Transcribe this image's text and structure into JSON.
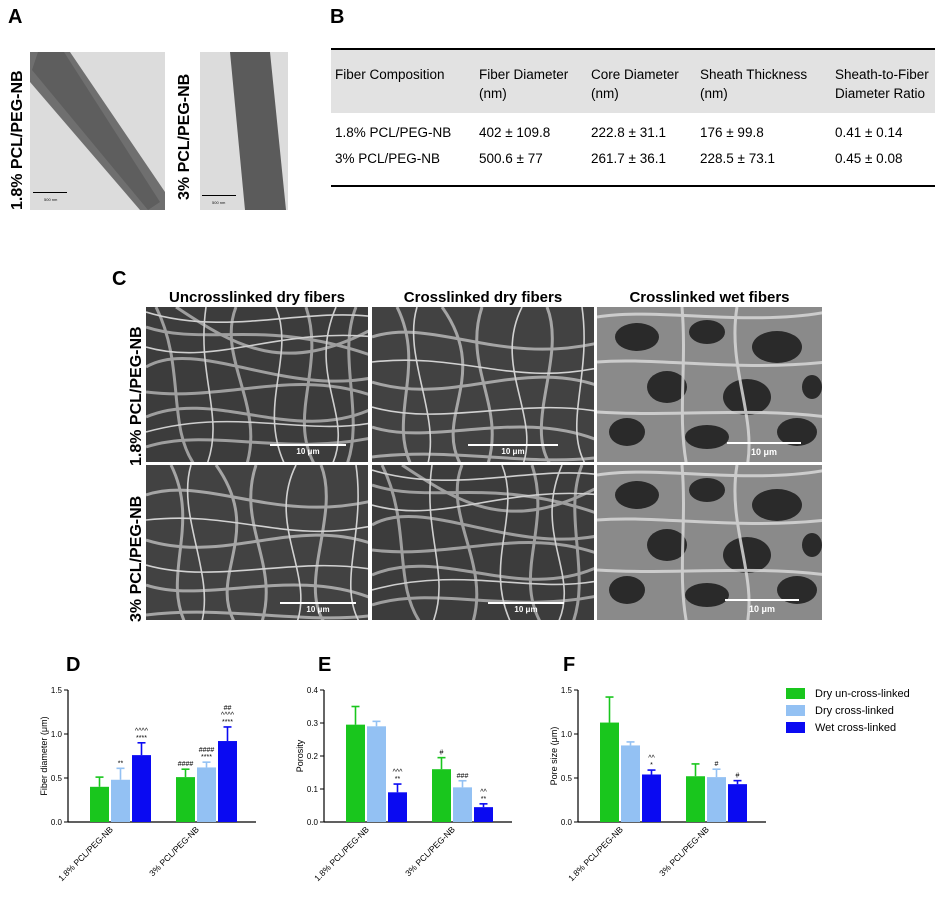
{
  "panels": {
    "a": "A",
    "b": "B",
    "c": "C",
    "d": "D",
    "e": "E",
    "f": "F"
  },
  "tem": {
    "label1": "1.8% PCL/PEG-NB",
    "label2": "3% PCL/PEG-NB",
    "scale1": "500 nm",
    "scale2": "500 nm"
  },
  "table": {
    "headers": [
      "Fiber Composition",
      "Fiber Diameter (nm)",
      "Core Diameter (nm)",
      "Sheath Thickness (nm)",
      "Sheath-to-Fiber Diameter Ratio"
    ],
    "rows": [
      [
        "1.8% PCL/PEG-NB",
        "402 ± 109.8",
        "222.8 ± 31.1",
        "176 ± 99.8",
        "0.41 ± 0.14"
      ],
      [
        "3% PCL/PEG-NB",
        "500.6 ± 77",
        "261.7 ± 36.1",
        "228.5 ± 73.1",
        "0.45 ± 0.08"
      ]
    ]
  },
  "sem": {
    "col1": "Uncrosslinked dry fibers",
    "col2": "Crosslinked dry fibers",
    "col3": "Crosslinked wet fibers",
    "row1": "1.8% PCL/PEG-NB",
    "row2": "3% PCL/PEG-NB",
    "scale_small": "10 μm",
    "scale_wet": "10 μm"
  },
  "legend": {
    "items": [
      {
        "label": "Dry un-cross-linked",
        "color": "#19c61d"
      },
      {
        "label": "Dry cross-linked",
        "color": "#93c1f3"
      },
      {
        "label": "Wet cross-linked",
        "color": "#0a0af2"
      }
    ]
  },
  "chart_data": [
    {
      "type": "bar",
      "panel": "D",
      "ylabel": "Fiber diameter (μm)",
      "ylim": [
        0,
        1.5
      ],
      "yticks": [
        "0.0",
        "0.5",
        "1.0",
        "1.5"
      ],
      "categories": [
        "1.8% PCL/PEG-NB",
        "3% PCL/PEG-NB"
      ],
      "series": [
        {
          "name": "Dry un-cross-linked",
          "values": [
            0.4,
            0.51
          ],
          "err": [
            0.11,
            0.09
          ],
          "marks": [
            [],
            [
              "####"
            ]
          ]
        },
        {
          "name": "Dry cross-linked",
          "values": [
            0.48,
            0.62
          ],
          "err": [
            0.13,
            0.06
          ],
          "marks": [
            [
              "**"
            ],
            [
              "####",
              "****"
            ]
          ]
        },
        {
          "name": "Wet cross-linked",
          "values": [
            0.76,
            0.92
          ],
          "err": [
            0.14,
            0.16
          ],
          "marks": [
            [
              "^^^^",
              "****"
            ],
            [
              "##",
              "^^^^",
              "****"
            ]
          ]
        }
      ]
    },
    {
      "type": "bar",
      "panel": "E",
      "ylabel": "Porosity",
      "ylim": [
        0,
        0.4
      ],
      "yticks": [
        "0.0",
        "0.1",
        "0.2",
        "0.3",
        "0.4"
      ],
      "categories": [
        "1.8% PCL/PEG-NB",
        "3% PCL/PEG-NB"
      ],
      "series": [
        {
          "name": "Dry un-cross-linked",
          "values": [
            0.295,
            0.16
          ],
          "err": [
            0.055,
            0.035
          ],
          "marks": [
            [],
            [
              "#"
            ]
          ]
        },
        {
          "name": "Dry cross-linked",
          "values": [
            0.29,
            0.105
          ],
          "err": [
            0.015,
            0.02
          ],
          "marks": [
            [],
            [
              "###"
            ]
          ]
        },
        {
          "name": "Wet cross-linked",
          "values": [
            0.09,
            0.045
          ],
          "err": [
            0.025,
            0.01
          ],
          "marks": [
            [
              "^^^",
              "**"
            ],
            [
              "^^",
              "**"
            ]
          ]
        }
      ]
    },
    {
      "type": "bar",
      "panel": "F",
      "ylabel": "Pore size (μm)",
      "ylim": [
        0,
        1.5
      ],
      "yticks": [
        "0.0",
        "0.5",
        "1.0",
        "1.5"
      ],
      "categories": [
        "1.8% PCL/PEG-NB",
        "3% PCL/PEG-NB"
      ],
      "series": [
        {
          "name": "Dry un-cross-linked",
          "values": [
            1.13,
            0.52
          ],
          "err": [
            0.29,
            0.14
          ],
          "marks": [
            [],
            []
          ]
        },
        {
          "name": "Dry cross-linked",
          "values": [
            0.87,
            0.51
          ],
          "err": [
            0.04,
            0.09
          ],
          "marks": [
            [],
            [
              "#"
            ]
          ]
        },
        {
          "name": "Wet cross-linked",
          "values": [
            0.54,
            0.43
          ],
          "err": [
            0.05,
            0.04
          ],
          "marks": [
            [
              "^^",
              "*"
            ],
            [
              "#"
            ]
          ]
        }
      ]
    }
  ]
}
